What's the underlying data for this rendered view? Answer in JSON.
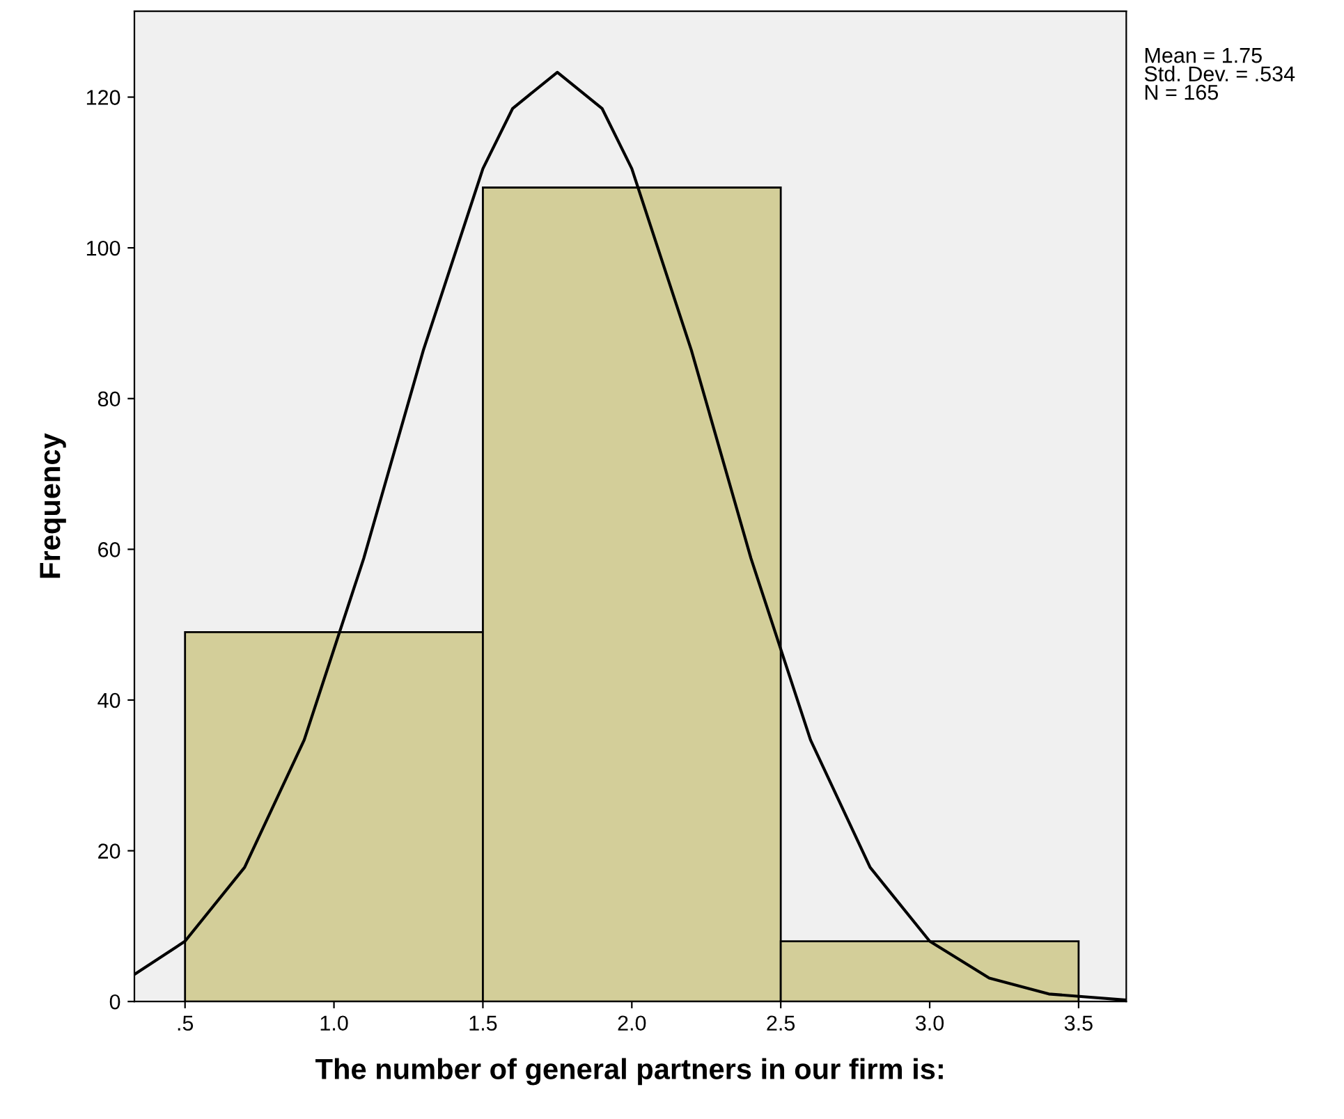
{
  "chart_data": {
    "type": "histogram",
    "xlabel": "The number of general partners in our firm is:",
    "ylabel": "Frequency",
    "bins": [
      0.5,
      1.5,
      2.5,
      3.5
    ],
    "values": [
      49,
      108,
      8
    ],
    "color": "#d3ce99",
    "series": [
      {
        "type": "line",
        "color": "#000000",
        "x": [
          0.33,
          0.5,
          0.7,
          0.9,
          1.1,
          1.3,
          1.5,
          1.6,
          1.75,
          1.9,
          2.0,
          2.2,
          2.4,
          2.6,
          2.8,
          3.0,
          3.2,
          3.4,
          3.66
        ],
        "values": [
          3.6,
          8.0,
          17.8,
          34.7,
          58.8,
          86.4,
          110.5,
          118.5,
          123.3,
          118.5,
          110.5,
          86.4,
          58.8,
          34.7,
          17.8,
          8.0,
          3.1,
          1.0,
          0.2
        ]
      }
    ],
    "xlim": [
      0.33,
      3.66
    ],
    "ylim": [
      0,
      131.4
    ],
    "xticks": [
      {
        "value": 0.5,
        "label": ".5"
      },
      {
        "value": 1.0,
        "label": "1.0"
      },
      {
        "value": 1.5,
        "label": "1.5"
      },
      {
        "value": 2.0,
        "label": "2.0"
      },
      {
        "value": 2.5,
        "label": "2.5"
      },
      {
        "value": 3.0,
        "label": "3.0"
      },
      {
        "value": 3.5,
        "label": "3.5"
      }
    ],
    "yticks": [
      0,
      20,
      40,
      60,
      80,
      100,
      120
    ],
    "annotations": [
      "Mean = 1.75",
      "Std. Dev. = .534",
      "N = 165"
    ]
  }
}
